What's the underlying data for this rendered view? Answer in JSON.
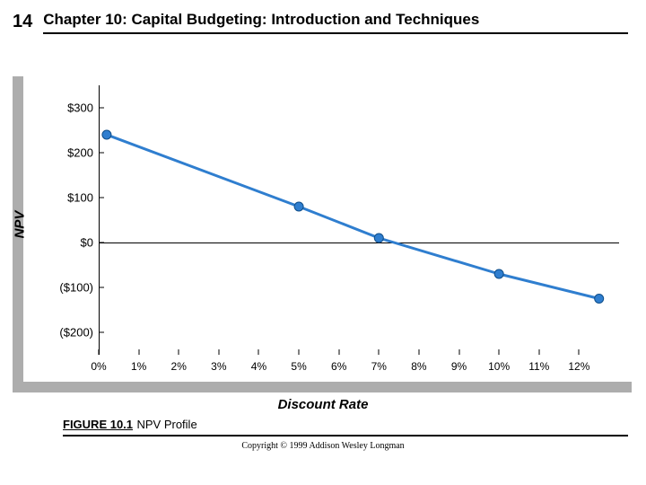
{
  "header": {
    "page_number": "14",
    "chapter_title": "Chapter 10: Capital Budgeting: Introduction and Techniques"
  },
  "chart": {
    "type": "line",
    "ylabel": "NPV",
    "xlabel": "Discount Rate",
    "background_color": "#ffffff",
    "bar_color": "#adadad",
    "line_color": "#2f7ecf",
    "marker_fill": "#2f7ecf",
    "marker_stroke": "#0f4e8a",
    "line_width": 3,
    "marker_radius": 5,
    "ylim": [
      -250,
      350
    ],
    "xlim": [
      0,
      13
    ],
    "yticks": [
      {
        "value": 300,
        "label": "$300"
      },
      {
        "value": 200,
        "label": "$200"
      },
      {
        "value": 100,
        "label": "$100"
      },
      {
        "value": 0,
        "label": "$0"
      },
      {
        "value": -100,
        "label": "($100)"
      },
      {
        "value": -200,
        "label": "($200)"
      }
    ],
    "xticks": [
      {
        "value": 0,
        "label": "0%"
      },
      {
        "value": 1,
        "label": "1%"
      },
      {
        "value": 2,
        "label": "2%"
      },
      {
        "value": 3,
        "label": "3%"
      },
      {
        "value": 4,
        "label": "4%"
      },
      {
        "value": 5,
        "label": "5%"
      },
      {
        "value": 6,
        "label": "6%"
      },
      {
        "value": 7,
        "label": "7%"
      },
      {
        "value": 8,
        "label": "8%"
      },
      {
        "value": 9,
        "label": "9%"
      },
      {
        "value": 10,
        "label": "10%"
      },
      {
        "value": 11,
        "label": "11%"
      },
      {
        "value": 12,
        "label": "12%"
      }
    ],
    "series": {
      "x": [
        0.2,
        5,
        7,
        10,
        12.5
      ],
      "y": [
        240,
        80,
        10,
        -70,
        -125
      ]
    }
  },
  "figure": {
    "label": "FIGURE 10.1",
    "title": "NPV Profile"
  },
  "copyright": "Copyright © 1999 Addison Wesley Longman"
}
